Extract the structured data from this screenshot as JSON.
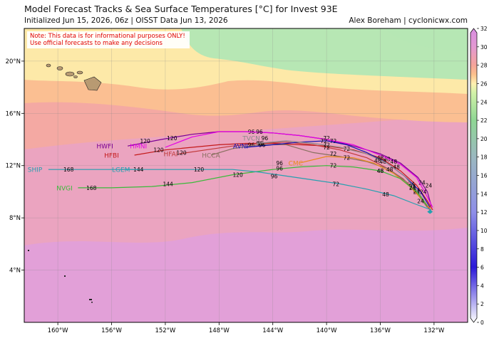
{
  "header": {
    "title": "Model Forecast Tracks & Sea Surface Temperatures [°C] for Invest 93E",
    "subtitle": "Initialized Jun 15, 2026, 06z | OISST Data Jun 13, 2026",
    "credit": "Alex Boreham | cyclonicwx.com"
  },
  "note": {
    "line1": "Note: This data is for informational purposes ONLY!",
    "line2": "Use official forecasts to make any decisions"
  },
  "map": {
    "lon_range": [
      -162.5,
      -129.5
    ],
    "lat_range": [
      0.0,
      22.5
    ],
    "lon_ticks": [
      {
        "v": -160,
        "label": "160°W"
      },
      {
        "v": -156,
        "label": "156°W"
      },
      {
        "v": -152,
        "label": "152°W"
      },
      {
        "v": -148,
        "label": "148°W"
      },
      {
        "v": -144,
        "label": "144°W"
      },
      {
        "v": -140,
        "label": "140°W"
      },
      {
        "v": -136,
        "label": "136°W"
      },
      {
        "v": -132,
        "label": "132°W"
      }
    ],
    "lat_ticks": [
      {
        "v": 4,
        "label": "4°N"
      },
      {
        "v": 8,
        "label": "8°N"
      },
      {
        "v": 12,
        "label": "12°N"
      },
      {
        "v": 16,
        "label": "16°N"
      },
      {
        "v": 20,
        "label": "20°N"
      }
    ]
  },
  "colorbar": {
    "min": 0,
    "max": 32,
    "ticks": [
      "0",
      "2",
      "4",
      "6",
      "8",
      "10",
      "12",
      "14",
      "16",
      "18",
      "20",
      "22",
      "24",
      "26",
      "28",
      "30",
      "32"
    ],
    "stops": [
      {
        "v": 0,
        "color": "#ffffff"
      },
      {
        "v": 6,
        "color": "#2b19d8"
      },
      {
        "v": 12,
        "color": "#8f8fe8"
      },
      {
        "v": 18,
        "color": "#9bb8c0"
      },
      {
        "v": 22,
        "color": "#8fd694"
      },
      {
        "v": 25,
        "color": "#d2f2a8"
      },
      {
        "v": 26,
        "color": "#fff0b0"
      },
      {
        "v": 27,
        "color": "#fcc08c"
      },
      {
        "v": 28,
        "color": "#f5a49a"
      },
      {
        "v": 30,
        "color": "#e399d2"
      },
      {
        "v": 32,
        "color": "#d88ee0"
      }
    ]
  },
  "sst_zones": {
    "green": "#b7e7b4",
    "yellow": "#fde9a8",
    "orange": "#fbbf92",
    "salmon": "#f4a9a3",
    "pink": "#eba4c0",
    "magenta": "#e2a0d8"
  },
  "tracks": [
    {
      "label": "HWFI",
      "color": "#7a0094",
      "points": [
        [
          -154.8,
          13.5
        ],
        [
          -152.3,
          14.0
        ],
        [
          -150.0,
          14.4
        ],
        [
          -148.0,
          14.6
        ],
        [
          -146.0,
          14.6
        ],
        [
          -144.0,
          14.5
        ],
        [
          -142.0,
          14.3
        ],
        [
          -140.0,
          14.0
        ],
        [
          -138.0,
          13.5
        ],
        [
          -136.0,
          12.9
        ],
        [
          -134.5,
          12.2
        ],
        [
          -133.2,
          11.1
        ],
        [
          -132.5,
          10.0
        ],
        [
          -132.2,
          8.9
        ]
      ],
      "tau": [
        {
          "t": "120",
          "at": [
            -151.5,
            14.1
          ]
        },
        {
          "t": "96",
          "at": [
            -145.6,
            14.6
          ]
        },
        {
          "t": "72",
          "at": [
            -140.0,
            14.1
          ]
        },
        {
          "t": "48",
          "at": [
            -135.5,
            12.5
          ]
        },
        {
          "t": "24",
          "at": [
            -132.9,
            10.7
          ]
        }
      ]
    },
    {
      "label": "HMNI",
      "color": "#e400e4",
      "points": [
        [
          -152.0,
          13.4
        ],
        [
          -150.0,
          14.2
        ],
        [
          -148.0,
          14.6
        ],
        [
          -146.0,
          14.6
        ],
        [
          -144.0,
          14.5
        ],
        [
          -142.0,
          14.3
        ],
        [
          -140.0,
          14.0
        ],
        [
          -138.0,
          13.6
        ],
        [
          -136.0,
          12.8
        ],
        [
          -134.5,
          12.1
        ],
        [
          -133.3,
          11.1
        ],
        [
          -132.6,
          9.8
        ],
        [
          -132.1,
          8.8
        ]
      ],
      "tau": [
        {
          "t": "120",
          "at": [
            -153.5,
            13.9
          ]
        },
        {
          "t": "96",
          "at": [
            -145.0,
            14.6
          ]
        },
        {
          "t": "72",
          "at": [
            -139.5,
            13.9
          ]
        },
        {
          "t": "48",
          "at": [
            -135.0,
            12.3
          ]
        },
        {
          "t": "24",
          "at": [
            -132.4,
            10.5
          ]
        }
      ]
    },
    {
      "label": "HFBI",
      "color": "#c41a1a",
      "points": [
        [
          -154.3,
          12.8
        ],
        [
          -152.0,
          13.2
        ],
        [
          -150.0,
          13.4
        ],
        [
          -148.0,
          13.6
        ],
        [
          -146.0,
          13.7
        ],
        [
          -144.0,
          13.7
        ],
        [
          -142.0,
          13.6
        ],
        [
          -140.0,
          13.5
        ],
        [
          -138.0,
          13.2
        ],
        [
          -136.0,
          12.6
        ],
        [
          -134.5,
          11.6
        ],
        [
          -133.3,
          10.5
        ],
        [
          -132.5,
          9.3
        ],
        [
          -132.1,
          8.6
        ]
      ],
      "tau": [
        {
          "t": "120",
          "at": [
            -152.5,
            13.2
          ]
        },
        {
          "t": "96",
          "at": [
            -145.0,
            13.7
          ]
        },
        {
          "t": "72",
          "at": [
            -138.5,
            13.3
          ]
        },
        {
          "t": "48",
          "at": [
            -134.8,
            11.9
          ]
        },
        {
          "t": "24",
          "at": [
            -132.8,
            10.0
          ]
        }
      ]
    },
    {
      "label": "HFAI",
      "color": "#c03a3a",
      "points": [
        [
          -151.0,
          12.9
        ],
        [
          -149.0,
          13.2
        ],
        [
          -147.0,
          13.5
        ],
        [
          -145.0,
          13.7
        ],
        [
          -143.0,
          13.8
        ],
        [
          -141.0,
          13.6
        ],
        [
          -139.0,
          13.2
        ],
        [
          -137.0,
          12.6
        ],
        [
          -135.3,
          11.7
        ],
        [
          -134.0,
          10.7
        ],
        [
          -133.0,
          9.6
        ],
        [
          -132.3,
          8.6
        ]
      ],
      "tau": [
        {
          "t": "120",
          "at": [
            -150.8,
            13.0
          ]
        },
        {
          "t": "96",
          "at": [
            -145.6,
            13.6
          ]
        },
        {
          "t": "72",
          "at": [
            -140.0,
            13.4
          ]
        },
        {
          "t": "48",
          "at": [
            -135.8,
            12.3
          ]
        },
        {
          "t": "24",
          "at": [
            -133.6,
            10.3
          ]
        }
      ]
    },
    {
      "label": "HCCA",
      "color": "#8a7060",
      "points": [
        [
          -148.6,
          12.8
        ],
        [
          -147.0,
          13.3
        ],
        [
          -145.0,
          13.6
        ],
        [
          -143.0,
          13.6
        ],
        [
          -141.0,
          13.0
        ],
        [
          -139.0,
          12.7
        ],
        [
          -137.0,
          12.3
        ],
        [
          -135.5,
          11.8
        ],
        [
          -134.3,
          11.0
        ],
        [
          -133.3,
          9.9
        ],
        [
          -132.5,
          8.8
        ]
      ],
      "tau": [
        {
          "t": "96",
          "at": [
            -144.9,
            13.7
          ]
        },
        {
          "t": "72",
          "at": [
            -139.5,
            12.9
          ]
        },
        {
          "t": "48",
          "at": [
            -136.0,
            11.6
          ]
        },
        {
          "t": "24",
          "at": [
            -133.3,
            10.1
          ]
        }
      ]
    },
    {
      "label": "AVNI",
      "color": "#1010b0",
      "points": [
        [
          -146.0,
          13.4
        ],
        [
          -144.0,
          13.6
        ],
        [
          -142.0,
          13.8
        ],
        [
          -140.0,
          13.9
        ],
        [
          -138.5,
          13.6
        ],
        [
          -137.0,
          13.0
        ],
        [
          -135.5,
          12.2
        ],
        [
          -134.2,
          11.2
        ],
        [
          -133.0,
          10.0
        ],
        [
          -132.3,
          8.8
        ]
      ],
      "tau": [
        {
          "t": "96",
          "at": [
            -144.8,
            13.6
          ]
        },
        {
          "t": "72",
          "at": [
            -140.2,
            13.9
          ]
        },
        {
          "t": "48",
          "at": [
            -136.0,
            12.6
          ]
        },
        {
          "t": "24",
          "at": [
            -133.7,
            10.6
          ]
        }
      ]
    },
    {
      "label": "TVCN",
      "color": "#8a8a8a",
      "points": [
        [
          -145.2,
          13.7
        ],
        [
          -143.0,
          13.9
        ],
        [
          -141.0,
          13.7
        ],
        [
          -139.0,
          13.4
        ],
        [
          -137.0,
          12.9
        ],
        [
          -135.5,
          12.2
        ],
        [
          -134.2,
          11.2
        ],
        [
          -133.2,
          10.0
        ],
        [
          -132.4,
          8.8
        ]
      ],
      "tau": [
        {
          "t": "96",
          "at": [
            -144.6,
            14.1
          ]
        },
        {
          "t": "72",
          "at": [
            -140.0,
            13.6
          ]
        },
        {
          "t": "48",
          "at": [
            -136.2,
            12.4
          ]
        },
        {
          "t": "24",
          "at": [
            -133.6,
            10.4
          ]
        }
      ]
    },
    {
      "label": "CMC",
      "color": "#e88a1a",
      "points": [
        [
          -142.0,
          12.2
        ],
        [
          -140.0,
          12.7
        ],
        [
          -138.0,
          12.6
        ],
        [
          -136.5,
          12.2
        ],
        [
          -135.0,
          11.4
        ],
        [
          -133.8,
          10.4
        ],
        [
          -132.8,
          9.3
        ],
        [
          -132.2,
          8.6
        ]
      ],
      "tau": [
        {
          "t": "96",
          "at": [
            -143.5,
            12.2
          ]
        },
        {
          "t": "72",
          "at": [
            -138.5,
            12.6
          ]
        },
        {
          "t": "48",
          "at": [
            -135.3,
            11.7
          ]
        },
        {
          "t": "24",
          "at": [
            -133.3,
            10.0
          ]
        }
      ]
    },
    {
      "label": "NVGI",
      "color": "#3aba3a",
      "points": [
        [
          -158.5,
          10.3
        ],
        [
          -156.0,
          10.3
        ],
        [
          -153.0,
          10.4
        ],
        [
          -150.0,
          10.7
        ],
        [
          -147.0,
          11.3
        ],
        [
          -144.0,
          11.7
        ],
        [
          -142.0,
          11.9
        ],
        [
          -140.0,
          12.0
        ],
        [
          -138.0,
          11.9
        ],
        [
          -136.0,
          11.6
        ],
        [
          -134.5,
          11.0
        ],
        [
          -133.3,
          10.0
        ],
        [
          -132.5,
          8.9
        ]
      ],
      "tau": [
        {
          "t": "168",
          "at": [
            -157.5,
            10.3
          ]
        },
        {
          "t": "144",
          "at": [
            -151.8,
            10.6
          ]
        },
        {
          "t": "120",
          "at": [
            -146.6,
            11.3
          ]
        },
        {
          "t": "96",
          "at": [
            -143.5,
            11.8
          ]
        },
        {
          "t": "72",
          "at": [
            -139.5,
            12.0
          ]
        },
        {
          "t": "48",
          "at": [
            -136.0,
            11.6
          ]
        },
        {
          "t": "24",
          "at": [
            -133.6,
            10.3
          ]
        }
      ]
    },
    {
      "label": "LGEM",
      "color": "#25a0b0",
      "points": [
        [
          -155.0,
          11.7
        ],
        [
          -152.0,
          11.7
        ],
        [
          -149.0,
          11.7
        ],
        [
          -147.0,
          11.7
        ],
        [
          -145.0,
          11.5
        ],
        [
          -143.0,
          11.2
        ],
        [
          -141.0,
          10.9
        ],
        [
          -139.0,
          10.6
        ],
        [
          -137.0,
          10.2
        ],
        [
          -135.0,
          9.7
        ],
        [
          -133.5,
          9.1
        ],
        [
          -132.2,
          8.6
        ]
      ],
      "tau": [
        {
          "t": "144",
          "at": [
            -154.0,
            11.7
          ]
        },
        {
          "t": "120",
          "at": [
            -149.5,
            11.7
          ]
        },
        {
          "t": "96",
          "at": [
            -143.9,
            11.2
          ]
        },
        {
          "t": "72",
          "at": [
            -139.3,
            10.6
          ]
        },
        {
          "t": "48",
          "at": [
            -135.6,
            9.8
          ]
        },
        {
          "t": "24",
          "at": [
            -133.0,
            9.3
          ]
        }
      ]
    },
    {
      "label": "SHIP",
      "color": "#25a0b0",
      "points": [
        [
          -160.7,
          11.7
        ],
        [
          -157.0,
          11.7
        ],
        [
          -154.0,
          11.7
        ]
      ],
      "tau": [
        {
          "t": "168",
          "at": [
            -159.2,
            11.7
          ]
        }
      ]
    }
  ],
  "track_label_pos": {
    "HWFI": [
      -156.5,
      13.5
    ],
    "HMNI": [
      -154.0,
      13.5
    ],
    "HFBI": [
      -156.0,
      12.8
    ],
    "HFAI": [
      -151.6,
      12.9
    ],
    "HCCA": [
      -148.6,
      12.8
    ],
    "AVNI": [
      -146.4,
      13.5
    ],
    "TVCN": [
      -145.6,
      14.1
    ],
    "CMC": [
      -142.3,
      12.2
    ],
    "NVGI": [
      -159.5,
      10.3
    ],
    "LGEM": [
      -155.3,
      11.7
    ],
    "SHIP": [
      -161.7,
      11.7
    ]
  }
}
